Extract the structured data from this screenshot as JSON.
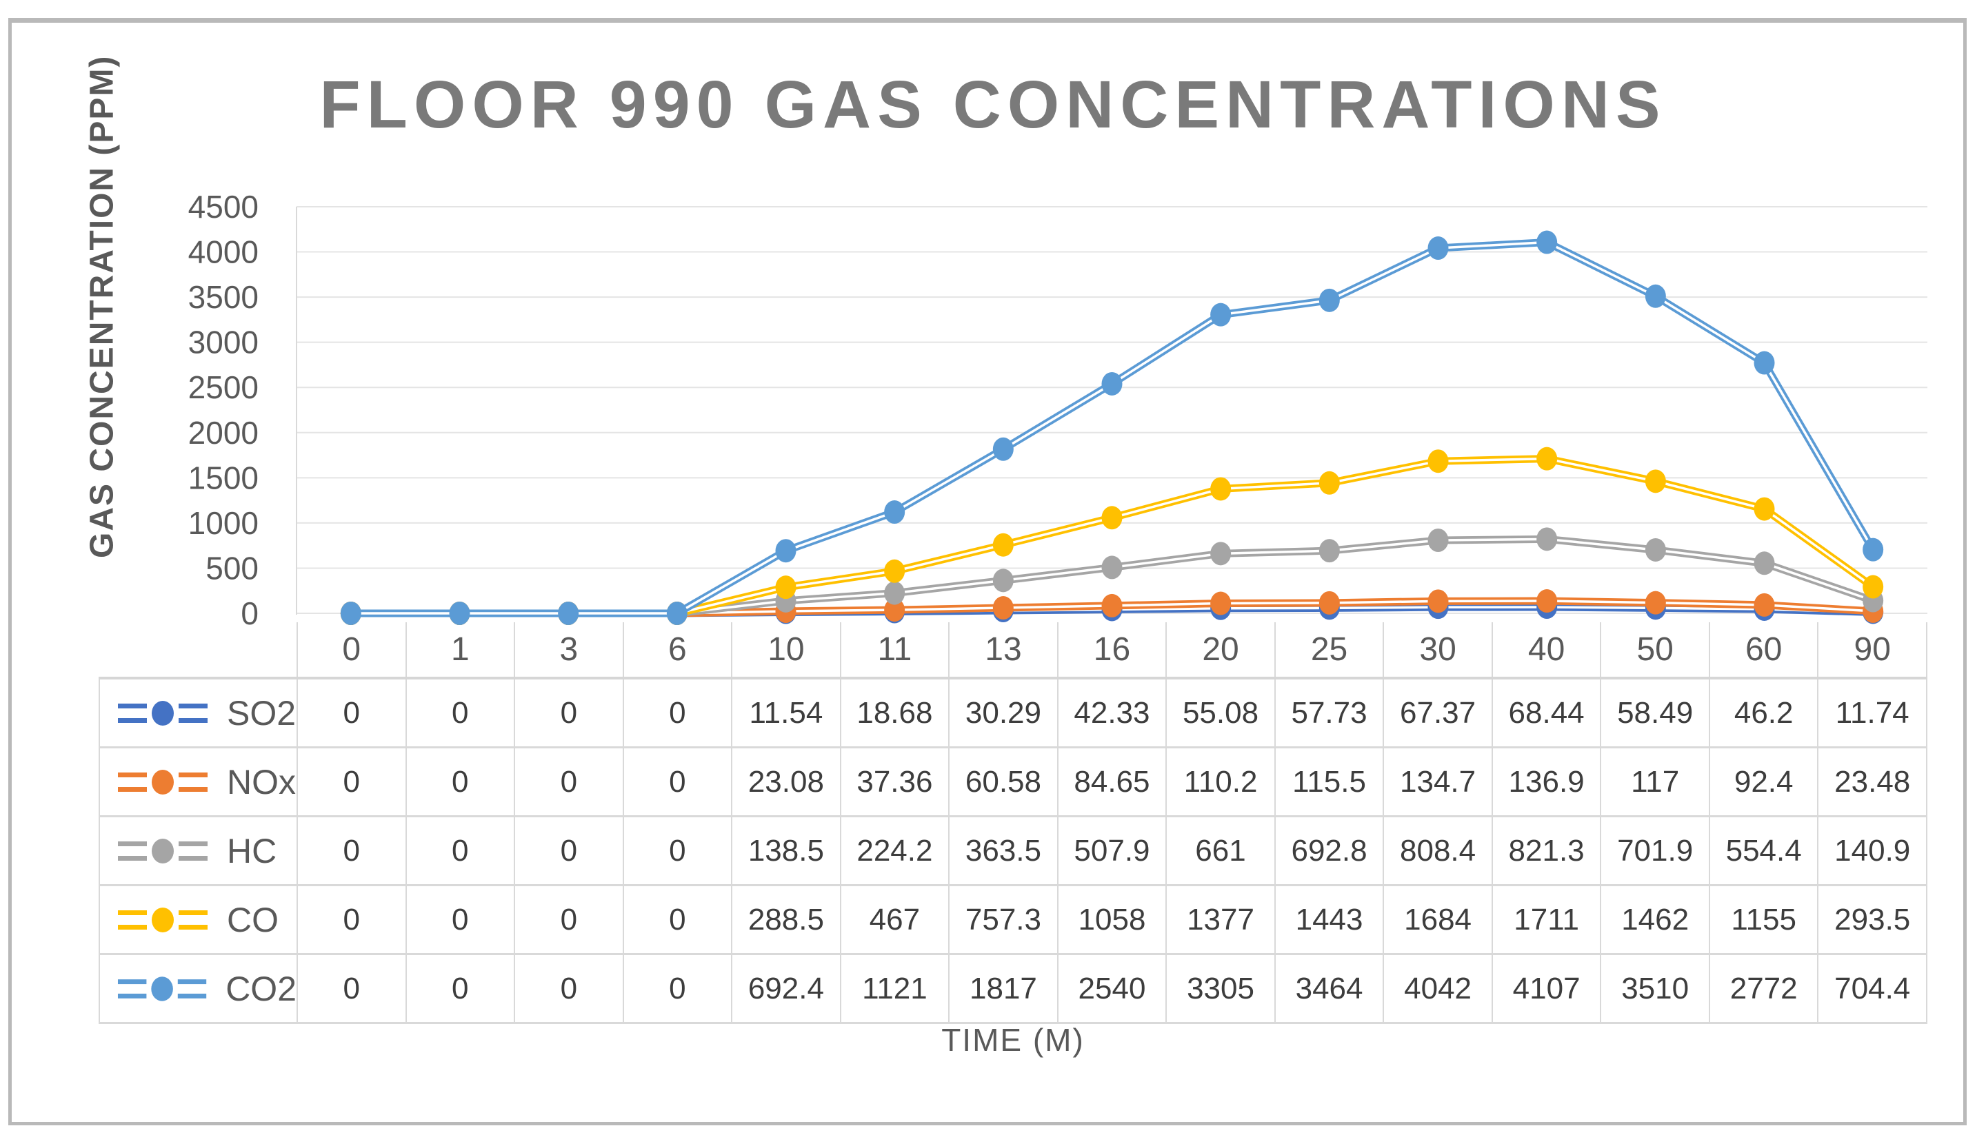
{
  "colors": {
    "title": "#7a7a7a",
    "axis_text": "#595959",
    "table_text": "#3d3d3d",
    "grid": "#E4E4E4",
    "axis_line": "#D9D9D9",
    "table_border": "#D9D9D9",
    "frame_border": "#b9b9b9"
  },
  "chart_data": {
    "type": "line",
    "title": "FLOOR 990 GAS CONCENTRATIONS",
    "ylabel": "GAS CONCENTRATION (PPM)",
    "xlabel": "TIME (M)",
    "categories": [
      0,
      1,
      3,
      6,
      10,
      11,
      13,
      16,
      20,
      25,
      30,
      40,
      50,
      60,
      90
    ],
    "ylim": [
      0,
      4500
    ],
    "yticks": [
      0,
      500,
      1000,
      1500,
      2000,
      2500,
      3000,
      3500,
      4000,
      4500
    ],
    "grid": true,
    "marker": "circle",
    "line_style": "double",
    "legend_position": "data-table-left",
    "series": [
      {
        "name": "SO2",
        "color": "#4472C4",
        "values": [
          0,
          0,
          0,
          0,
          11.54,
          18.68,
          30.29,
          42.33,
          55.08,
          57.73,
          67.37,
          68.44,
          58.49,
          46.2,
          11.74
        ]
      },
      {
        "name": "NOx",
        "color": "#ED7D31",
        "values": [
          0,
          0,
          0,
          0,
          23.08,
          37.36,
          60.58,
          84.65,
          110.2,
          115.5,
          134.7,
          136.9,
          117,
          92.4,
          23.48
        ]
      },
      {
        "name": "HC",
        "color": "#A5A5A5",
        "values": [
          0,
          0,
          0,
          0,
          138.5,
          224.2,
          363.5,
          507.9,
          661,
          692.8,
          808.4,
          821.3,
          701.9,
          554.4,
          140.9
        ]
      },
      {
        "name": "CO",
        "color": "#FFC000",
        "values": [
          0,
          0,
          0,
          0,
          288.5,
          467,
          757.3,
          1058,
          1377,
          1443,
          1684,
          1711,
          1462,
          1155,
          293.5
        ]
      },
      {
        "name": "CO2",
        "color": "#5B9BD5",
        "values": [
          0,
          0,
          0,
          0,
          692.4,
          1121,
          1817,
          2540,
          3305,
          3464,
          4042,
          4107,
          3510,
          2772,
          704.4
        ]
      }
    ]
  }
}
